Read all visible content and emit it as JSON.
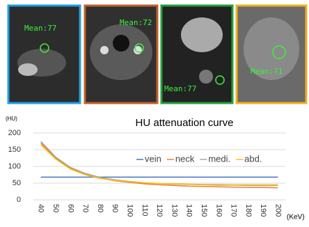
{
  "panels": [
    {
      "label": "Mean:77",
      "color": "#1ea0e0"
    },
    {
      "label": "Mean:72",
      "color": "#c0622a"
    },
    {
      "label": "Mean:77",
      "color": "#22a040"
    },
    {
      "label": "Mean:71",
      "color": "#f0b020"
    }
  ],
  "chart_data": {
    "type": "line",
    "title": "HU attenuation curve",
    "y_label": "(HU)",
    "x_label": "(KeV)",
    "categories": [
      "40",
      "50",
      "60",
      "70",
      "80",
      "90",
      "100",
      "110",
      "120",
      "130",
      "140",
      "150",
      "160",
      "170",
      "180",
      "190",
      "200"
    ],
    "series": [
      {
        "name": "vein",
        "color": "#4472c4",
        "values": [
          68,
          68,
          68,
          68,
          68,
          68,
          68,
          68,
          68,
          68,
          68,
          68,
          68,
          68,
          68,
          68,
          68
        ]
      },
      {
        "name": "neck",
        "color": "#ed7d31",
        "values": [
          170,
          125,
          95,
          77,
          65,
          57,
          52,
          48,
          45,
          43,
          41,
          40,
          39,
          38,
          37,
          37,
          36
        ]
      },
      {
        "name": "medi.",
        "color": "#a5a5a5",
        "values": [
          175,
          128,
          97,
          79,
          67,
          60,
          55,
          51,
          49,
          47,
          46,
          45,
          44,
          44,
          43,
          43,
          43
        ]
      },
      {
        "name": "abd.",
        "color": "#ffc000",
        "values": [
          165,
          122,
          92,
          75,
          64,
          58,
          54,
          51,
          49,
          48,
          47,
          46,
          46,
          45,
          45,
          45,
          45
        ]
      }
    ],
    "ylim": [
      0,
      200
    ],
    "yticks": [
      0,
      50,
      100,
      150,
      200
    ],
    "grid": true
  }
}
